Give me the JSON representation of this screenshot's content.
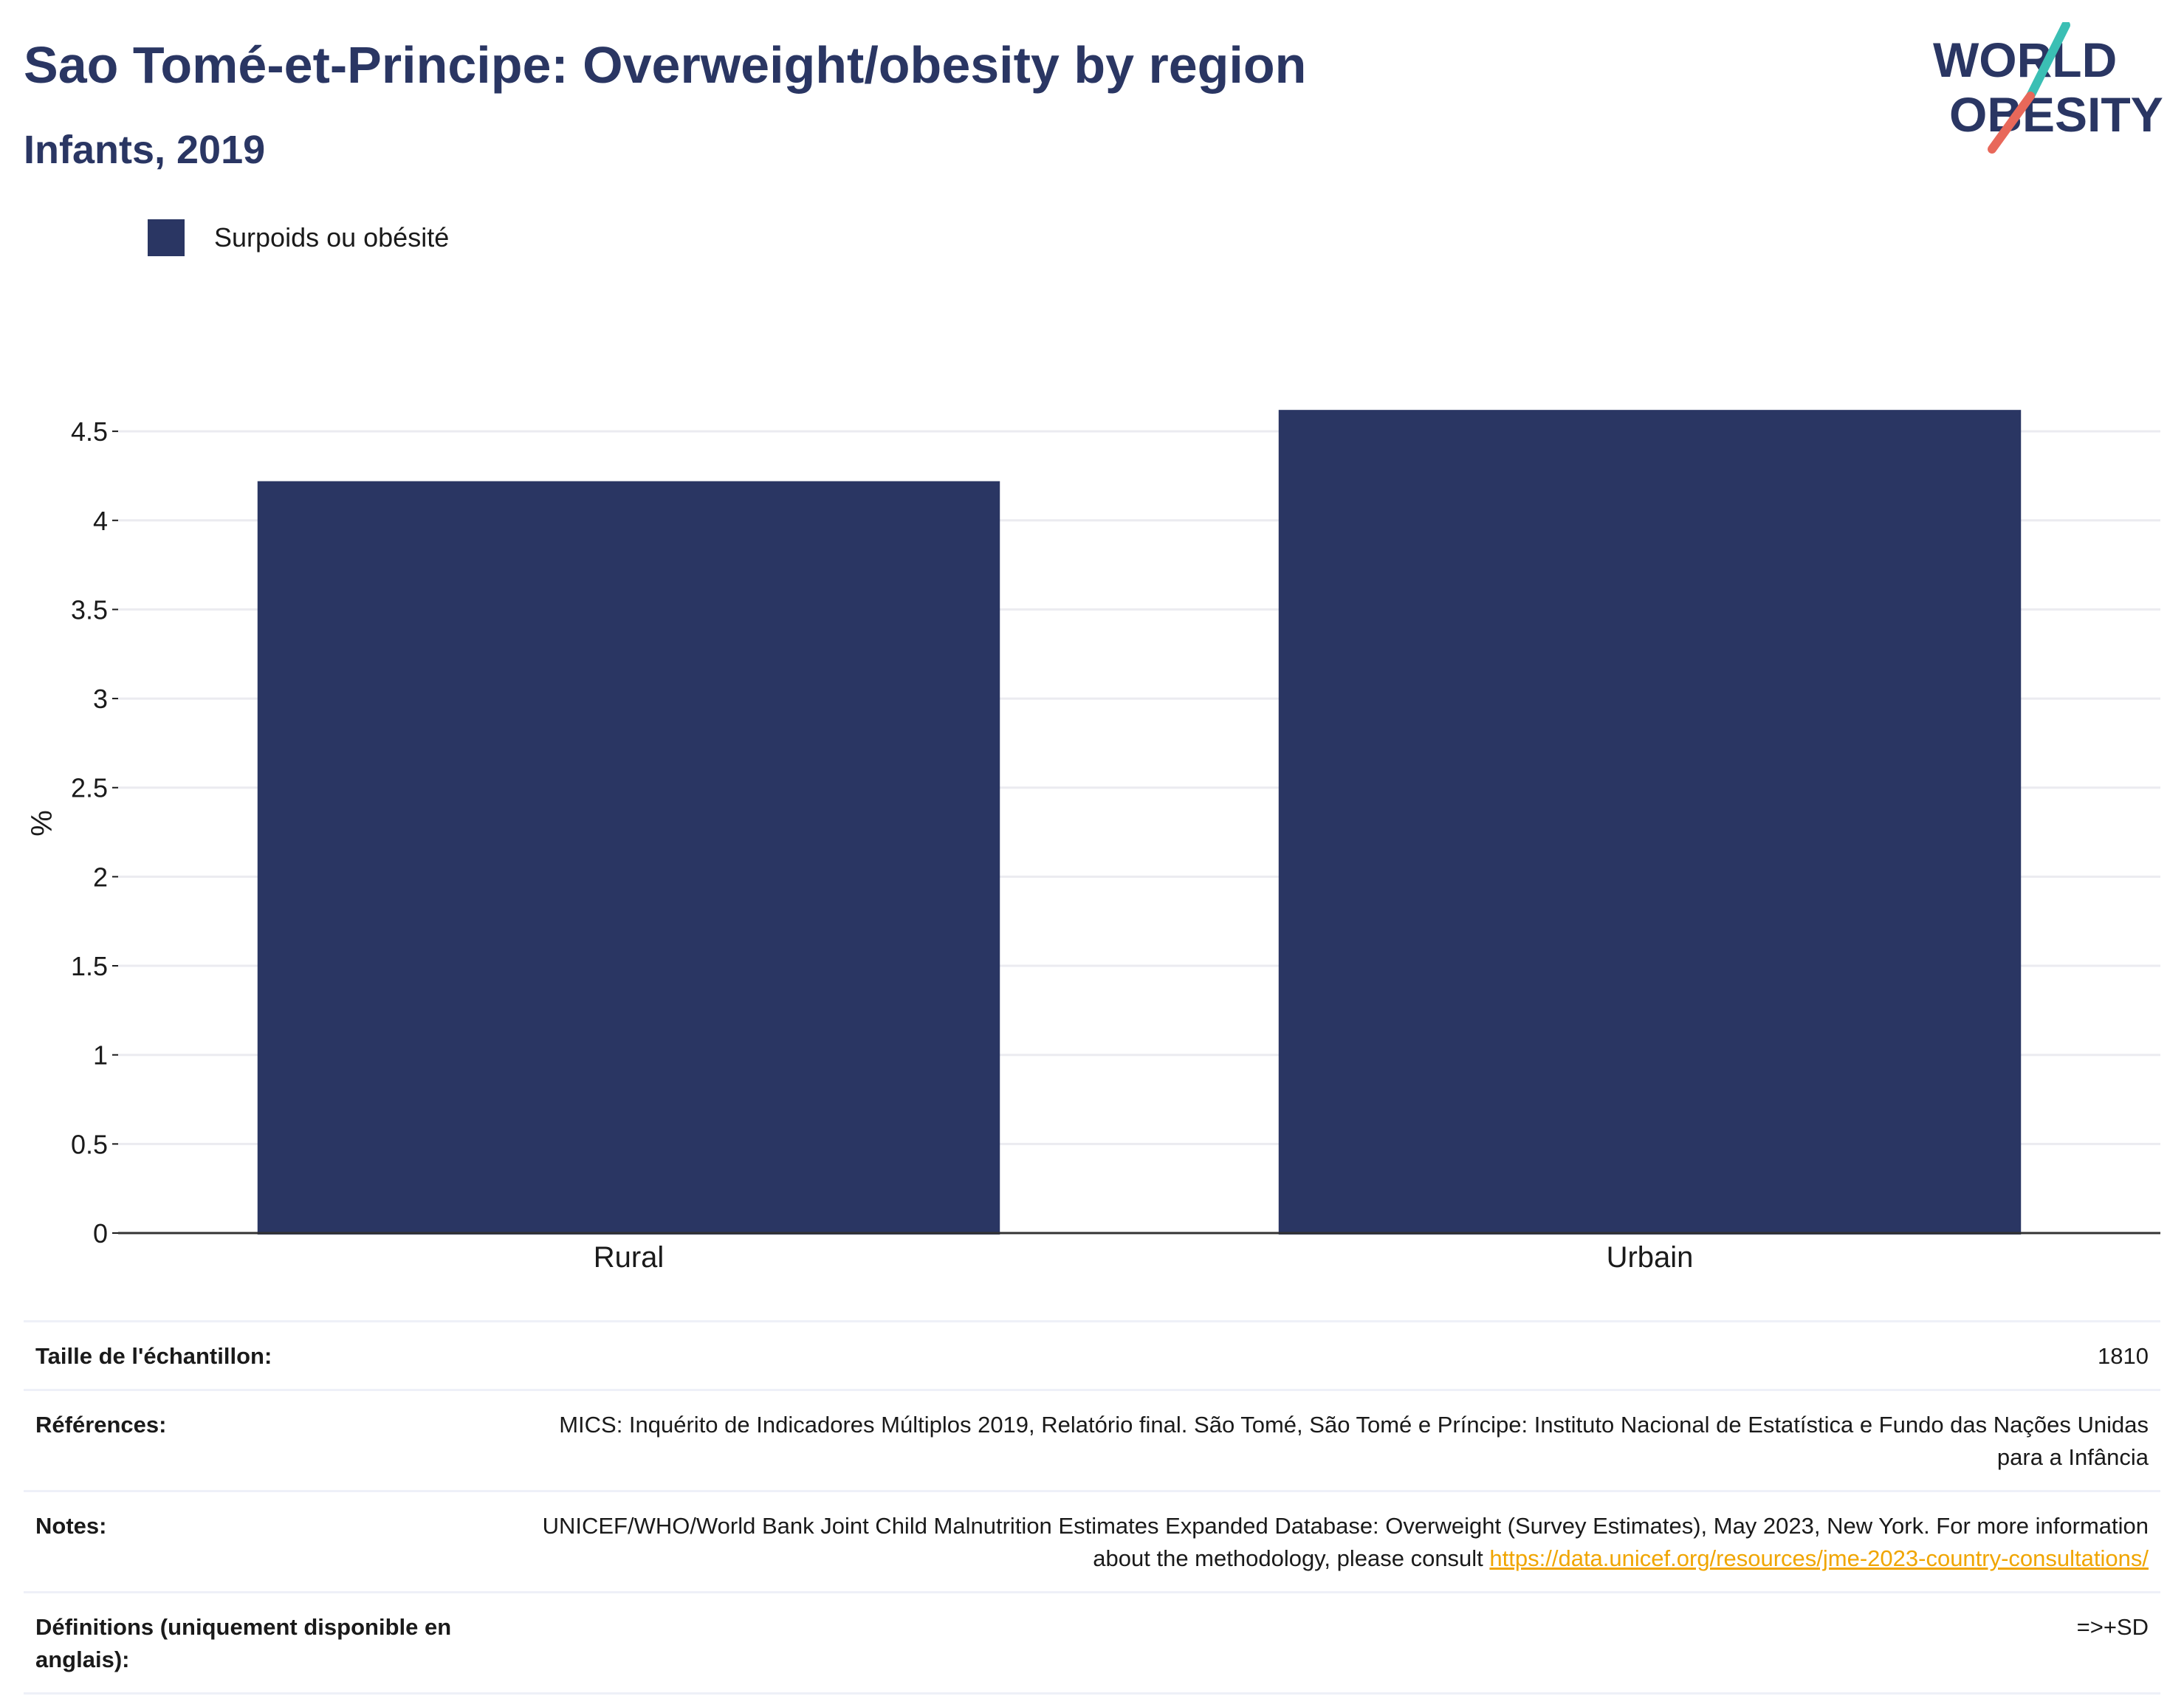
{
  "header": {
    "title": "Sao Tomé-et-Principe: Overweight/obesity by region",
    "subtitle": "Infants, 2019"
  },
  "logo": {
    "line1": "WORLD",
    "line2": "OBESITY",
    "colors": {
      "text": "#2a3663",
      "slash_top": "#3bbfb4",
      "slash_bottom": "#e8685a"
    }
  },
  "legend": {
    "label": "Surpoids ou obésité",
    "color": "#2a3663"
  },
  "chart_data": {
    "type": "bar",
    "categories": [
      "Rural",
      "Urbain"
    ],
    "series": [
      {
        "name": "Surpoids ou obésité",
        "values": [
          4.22,
          4.62
        ],
        "color": "#2a3663"
      }
    ],
    "ylabel": "%",
    "xlabel": "",
    "ylim": [
      0,
      4.6
    ],
    "yticks": [
      0,
      0.5,
      1,
      1.5,
      2,
      2.5,
      3,
      3.5,
      4,
      4.5
    ],
    "ytick_labels": [
      "0",
      "0.5",
      "1",
      "1.5",
      "2",
      "2.5",
      "3",
      "3.5",
      "4",
      "4.5"
    ],
    "grid": true,
    "legend_position": "top-left"
  },
  "footer": {
    "sample": {
      "label": "Taille de l'échantillon:",
      "value": "1810"
    },
    "references": {
      "label": "Références:",
      "value": "MICS: Inquérito de Indicadores Múltiplos 2019, Relatório final. São Tomé, São Tomé e Príncipe: Instituto Nacional de Estatística e Fundo das Nações Unidas para a Infância"
    },
    "notes": {
      "label": "Notes:",
      "value": "UNICEF/WHO/World Bank Joint Child Malnutrition Estimates Expanded Database: Overweight (Survey Estimates), May 2023, New York. For more information about the methodology, please consult ",
      "link": "https://data.unicef.org/resources/jme-2023-country-consultations/"
    },
    "definitions": {
      "label": "Définitions (uniquement disponible en anglais):",
      "value": "=>+SD"
    }
  }
}
